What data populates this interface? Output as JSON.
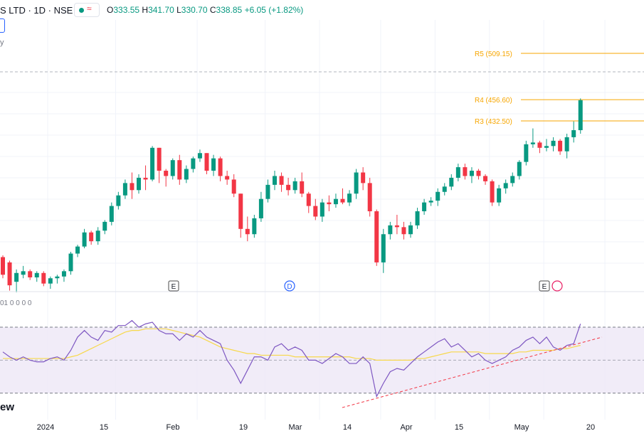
{
  "header": {
    "symbol_partial": "S LTD · 1D · NSE",
    "wave_icon": "≈",
    "open_label": "O",
    "open": "333.55",
    "high_label": "H",
    "high": "341.70",
    "low_label": "L",
    "low": "330.70",
    "close_label": "C",
    "close": "338.85",
    "change": "+6.05 (+1.82%)"
  },
  "left_partial_label": "y",
  "indicator": {
    "label_partial": "01  0 0 0 0"
  },
  "watermark_partial": "ew",
  "event_markers": [
    {
      "label": "E",
      "date": "2024-01-31"
    },
    {
      "label": "D",
      "date": "2024-03-07"
    },
    {
      "label": "E",
      "date": "2024-05-10"
    }
  ],
  "colors": {
    "up": "#089981",
    "down": "#f23645",
    "pivot": "#f7a600",
    "rsi": "#7e57c2",
    "rsi_ma": "#f7d84a",
    "trend": "#f23645",
    "band": "#ede7f6"
  },
  "chart_data": {
    "type": "candlestick",
    "x_ticks": [
      "2024",
      "15",
      "Feb",
      "19",
      "Mar",
      "14",
      "Apr",
      "15",
      "May",
      "20"
    ],
    "x_tick_positions": [
      0,
      10,
      22,
      32,
      40,
      49,
      57,
      65,
      73,
      82
    ],
    "pivot_levels": [
      {
        "label": "R5 (509.15)",
        "value": 509.15
      },
      {
        "label": "R4 (456.60)",
        "value": 456.6
      },
      {
        "label": "R3 (432.50)",
        "value": 432.5
      }
    ],
    "ohlc": [
      [
        278,
        280,
        254,
        258
      ],
      [
        272,
        274,
        240,
        246
      ],
      [
        250,
        264,
        238,
        260
      ],
      [
        258,
        268,
        254,
        262
      ],
      [
        262,
        264,
        252,
        255
      ],
      [
        255,
        262,
        250,
        260
      ],
      [
        260,
        262,
        245,
        248
      ],
      [
        248,
        256,
        242,
        254
      ],
      [
        254,
        258,
        248,
        256
      ],
      [
        256,
        264,
        250,
        262
      ],
      [
        262,
        284,
        258,
        282
      ],
      [
        282,
        292,
        278,
        290
      ],
      [
        290,
        310,
        288,
        306
      ],
      [
        306,
        308,
        292,
        296
      ],
      [
        296,
        312,
        292,
        308
      ],
      [
        308,
        320,
        304,
        318
      ],
      [
        318,
        340,
        314,
        336
      ],
      [
        336,
        352,
        332,
        348
      ],
      [
        348,
        366,
        344,
        362
      ],
      [
        362,
        374,
        344,
        354
      ],
      [
        354,
        372,
        350,
        368
      ],
      [
        368,
        382,
        354,
        366
      ],
      [
        366,
        404,
        364,
        402
      ],
      [
        402,
        402,
        362,
        376
      ],
      [
        376,
        378,
        358,
        370
      ],
      [
        370,
        390,
        366,
        388
      ],
      [
        388,
        394,
        360,
        366
      ],
      [
        366,
        382,
        362,
        378
      ],
      [
        378,
        392,
        374,
        390
      ],
      [
        390,
        400,
        386,
        396
      ],
      [
        396,
        396,
        372,
        376
      ],
      [
        376,
        394,
        370,
        390
      ],
      [
        390,
        392,
        364,
        370
      ],
      [
        370,
        376,
        360,
        366
      ],
      [
        366,
        372,
        346,
        350
      ],
      [
        350,
        350,
        300,
        310
      ],
      [
        310,
        324,
        296,
        304
      ],
      [
        304,
        326,
        300,
        322
      ],
      [
        322,
        352,
        318,
        344
      ],
      [
        344,
        366,
        340,
        360
      ],
      [
        360,
        376,
        354,
        370
      ],
      [
        370,
        374,
        352,
        360
      ],
      [
        360,
        368,
        348,
        354
      ],
      [
        354,
        368,
        350,
        364
      ],
      [
        364,
        374,
        346,
        350
      ],
      [
        350,
        352,
        328,
        336
      ],
      [
        336,
        344,
        320,
        324
      ],
      [
        324,
        344,
        318,
        340
      ],
      [
        340,
        348,
        330,
        338
      ],
      [
        338,
        350,
        334,
        344
      ],
      [
        344,
        356,
        338,
        340
      ],
      [
        340,
        354,
        336,
        350
      ],
      [
        350,
        378,
        344,
        374
      ],
      [
        374,
        380,
        354,
        362
      ],
      [
        362,
        368,
        324,
        330
      ],
      [
        330,
        332,
        268,
        272
      ],
      [
        272,
        310,
        260,
        304
      ],
      [
        304,
        318,
        298,
        314
      ],
      [
        314,
        326,
        304,
        312
      ],
      [
        312,
        318,
        298,
        304
      ],
      [
        304,
        318,
        300,
        314
      ],
      [
        314,
        334,
        310,
        330
      ],
      [
        330,
        344,
        326,
        340
      ],
      [
        340,
        346,
        336,
        342
      ],
      [
        342,
        356,
        336,
        352
      ],
      [
        352,
        362,
        348,
        358
      ],
      [
        358,
        372,
        354,
        368
      ],
      [
        368,
        384,
        364,
        380
      ],
      [
        380,
        384,
        366,
        370
      ],
      [
        370,
        380,
        362,
        376
      ],
      [
        376,
        378,
        366,
        370
      ],
      [
        370,
        372,
        360,
        364
      ],
      [
        364,
        366,
        336,
        340
      ],
      [
        340,
        360,
        336,
        356
      ],
      [
        356,
        366,
        350,
        362
      ],
      [
        362,
        374,
        358,
        370
      ],
      [
        370,
        388,
        366,
        386
      ],
      [
        386,
        410,
        382,
        406
      ],
      [
        406,
        424,
        402,
        408
      ],
      [
        408,
        410,
        396,
        402
      ],
      [
        402,
        412,
        398,
        404
      ],
      [
        404,
        414,
        398,
        410
      ],
      [
        410,
        412,
        394,
        398
      ],
      [
        398,
        418,
        390,
        414
      ],
      [
        414,
        432,
        408,
        422
      ],
      [
        422,
        458,
        418,
        456
      ]
    ],
    "rsi_ylim": [
      20,
      90
    ],
    "rsi_band": [
      30,
      70
    ],
    "rsi": [
      55,
      52,
      50,
      52,
      50,
      49,
      49,
      51,
      52,
      50,
      56,
      64,
      68,
      64,
      62,
      68,
      67,
      71,
      71,
      74,
      70,
      72,
      73,
      68,
      66,
      66,
      62,
      66,
      64,
      68,
      64,
      62,
      60,
      50,
      44,
      36,
      44,
      52,
      52,
      50,
      58,
      60,
      56,
      58,
      56,
      50,
      50,
      48,
      51,
      54,
      52,
      48,
      48,
      52,
      48,
      28,
      36,
      43,
      45,
      44,
      48,
      52,
      55,
      58,
      61,
      63,
      58,
      60,
      56,
      52,
      54,
      50,
      48,
      50,
      52,
      56,
      58,
      62,
      64,
      60,
      64,
      58,
      56,
      59,
      60,
      72
    ],
    "rsi_ma": [
      51,
      51,
      51,
      51,
      51,
      51,
      51,
      51,
      51,
      51,
      52,
      53,
      55,
      57,
      59,
      61,
      63,
      65,
      67,
      68,
      68,
      69,
      69,
      69,
      69,
      68,
      67,
      66,
      65,
      64,
      62,
      60,
      58,
      57,
      56,
      55,
      54,
      54,
      53,
      53,
      53,
      53,
      53,
      52,
      52,
      52,
      52,
      52,
      52,
      52,
      52,
      52,
      51,
      51,
      51,
      50,
      50,
      50,
      50,
      50,
      50,
      51,
      51,
      52,
      53,
      54,
      55,
      55,
      55,
      55,
      55,
      54,
      54,
      54,
      54,
      54,
      55,
      55,
      56,
      56,
      56,
      56,
      57,
      57,
      58,
      59
    ]
  }
}
